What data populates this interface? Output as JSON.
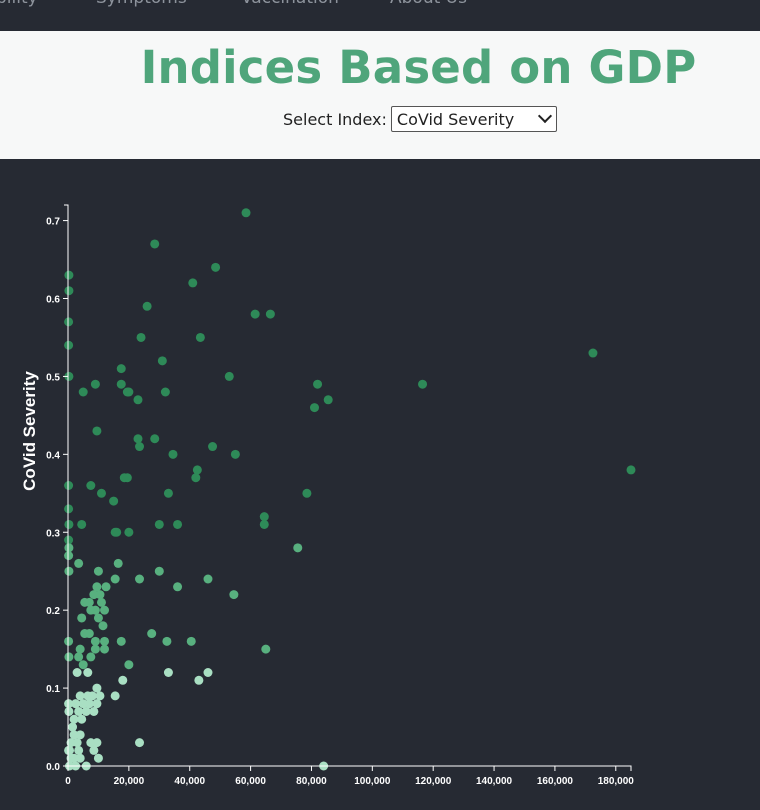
{
  "nav": {
    "items": [
      "bility",
      "Symptoms",
      "Vaccination",
      "About Us"
    ]
  },
  "header": {
    "title": "Indices Based on GDP",
    "select_label": "Select Index:",
    "select_value": "CoVid Severity"
  },
  "colors": {
    "dark": "#2e8a58",
    "mid": "#58b07f",
    "light": "#a9dfc3",
    "background": "#262a33",
    "title": "#4fa57b"
  },
  "chart_data": {
    "type": "scatter",
    "title": "",
    "xlabel": "",
    "ylabel": "CoVid Severity",
    "xlim": [
      0,
      185000
    ],
    "ylim": [
      0,
      0.72
    ],
    "x_ticks": [
      "0",
      "20,000",
      "40,000",
      "60,000",
      "80,000",
      "100,000",
      "120,000",
      "140,000",
      "160,000",
      "180,000"
    ],
    "y_ticks": [
      "0.0",
      "0.1",
      "0.2",
      "0.3",
      "0.4",
      "0.5",
      "0.6",
      "0.7"
    ],
    "color_encoding": "point color shade follows CoVid Severity (light = low, dark = high)",
    "grid": false,
    "points": [
      [
        58500,
        0.71
      ],
      [
        28500,
        0.67
      ],
      [
        48500,
        0.64
      ],
      [
        41000,
        0.62
      ],
      [
        26000,
        0.59
      ],
      [
        61500,
        0.58
      ],
      [
        66500,
        0.58
      ],
      [
        24000,
        0.55
      ],
      [
        43500,
        0.55
      ],
      [
        31000,
        0.52
      ],
      [
        172500,
        0.53
      ],
      [
        17500,
        0.51
      ],
      [
        53000,
        0.5
      ],
      [
        9000,
        0.49
      ],
      [
        17500,
        0.49
      ],
      [
        20000,
        0.48
      ],
      [
        19500,
        0.48
      ],
      [
        32000,
        0.48
      ],
      [
        82000,
        0.49
      ],
      [
        116500,
        0.49
      ],
      [
        5000,
        0.48
      ],
      [
        23000,
        0.47
      ],
      [
        85500,
        0.47
      ],
      [
        81000,
        0.46
      ],
      [
        9500,
        0.43
      ],
      [
        23000,
        0.42
      ],
      [
        28500,
        0.42
      ],
      [
        47500,
        0.41
      ],
      [
        23500,
        0.41
      ],
      [
        55000,
        0.4
      ],
      [
        34500,
        0.4
      ],
      [
        42500,
        0.38
      ],
      [
        185000,
        0.38
      ],
      [
        18500,
        0.37
      ],
      [
        19500,
        0.37
      ],
      [
        42000,
        0.37
      ],
      [
        7500,
        0.36
      ],
      [
        78500,
        0.35
      ],
      [
        11000,
        0.35
      ],
      [
        33000,
        0.35
      ],
      [
        15000,
        0.34
      ],
      [
        64500,
        0.32
      ],
      [
        64500,
        0.31
      ],
      [
        36000,
        0.31
      ],
      [
        30000,
        0.31
      ],
      [
        4500,
        0.31
      ],
      [
        16000,
        0.3
      ],
      [
        15500,
        0.3
      ],
      [
        20000,
        0.3
      ],
      [
        75500,
        0.28
      ],
      [
        3500,
        0.26
      ],
      [
        16500,
        0.26
      ],
      [
        30000,
        0.25
      ],
      [
        10000,
        0.25
      ],
      [
        46000,
        0.24
      ],
      [
        15500,
        0.24
      ],
      [
        23500,
        0.24
      ],
      [
        36000,
        0.23
      ],
      [
        9500,
        0.23
      ],
      [
        12500,
        0.23
      ],
      [
        10500,
        0.22
      ],
      [
        54500,
        0.22
      ],
      [
        8500,
        0.22
      ],
      [
        7000,
        0.21
      ],
      [
        5500,
        0.21
      ],
      [
        11000,
        0.21
      ],
      [
        12000,
        0.2
      ],
      [
        9000,
        0.2
      ],
      [
        7500,
        0.2
      ],
      [
        4500,
        0.19
      ],
      [
        10000,
        0.19
      ],
      [
        11500,
        0.18
      ],
      [
        27500,
        0.17
      ],
      [
        5500,
        0.17
      ],
      [
        7000,
        0.17
      ],
      [
        9000,
        0.16
      ],
      [
        12000,
        0.16
      ],
      [
        17500,
        0.16
      ],
      [
        32500,
        0.16
      ],
      [
        40500,
        0.16
      ],
      [
        4000,
        0.15
      ],
      [
        9000,
        0.15
      ],
      [
        65000,
        0.15
      ],
      [
        12000,
        0.15
      ],
      [
        3500,
        0.14
      ],
      [
        7500,
        0.14
      ],
      [
        20000,
        0.13
      ],
      [
        5000,
        0.13
      ],
      [
        46000,
        0.12
      ],
      [
        3000,
        0.12
      ],
      [
        33000,
        0.12
      ],
      [
        6500,
        0.12
      ],
      [
        18000,
        0.11
      ],
      [
        43000,
        0.11
      ],
      [
        9500,
        0.1
      ],
      [
        15500,
        0.09
      ],
      [
        4000,
        0.09
      ],
      [
        6500,
        0.09
      ],
      [
        8000,
        0.09
      ],
      [
        10500,
        0.09
      ],
      [
        2500,
        0.08
      ],
      [
        5000,
        0.08
      ],
      [
        7000,
        0.08
      ],
      [
        9500,
        0.08
      ],
      [
        3500,
        0.07
      ],
      [
        6000,
        0.07
      ],
      [
        8500,
        0.07
      ],
      [
        2000,
        0.06
      ],
      [
        4500,
        0.06
      ],
      [
        1500,
        0.05
      ],
      [
        4000,
        0.04
      ],
      [
        2000,
        0.04
      ],
      [
        3000,
        0.03
      ],
      [
        1000,
        0.03
      ],
      [
        23500,
        0.03
      ],
      [
        9500,
        0.03
      ],
      [
        7500,
        0.03
      ],
      [
        500,
        0.02
      ],
      [
        3500,
        0.02
      ],
      [
        8500,
        0.02
      ],
      [
        2000,
        0.01
      ],
      [
        1000,
        0.01
      ],
      [
        4000,
        0.01
      ],
      [
        10000,
        0.01
      ],
      [
        500,
        0.0
      ],
      [
        2500,
        0.0
      ],
      [
        6000,
        0.0
      ],
      [
        84000,
        0.0
      ],
      [
        300,
        0.63
      ],
      [
        300,
        0.61
      ],
      [
        200,
        0.57
      ],
      [
        200,
        0.54
      ],
      [
        300,
        0.5
      ],
      [
        200,
        0.36
      ],
      [
        200,
        0.33
      ],
      [
        300,
        0.31
      ],
      [
        200,
        0.29
      ],
      [
        300,
        0.28
      ],
      [
        200,
        0.27
      ],
      [
        300,
        0.25
      ],
      [
        200,
        0.16
      ],
      [
        300,
        0.14
      ],
      [
        200,
        0.08
      ],
      [
        300,
        0.07
      ],
      [
        200,
        0.02
      ]
    ]
  }
}
